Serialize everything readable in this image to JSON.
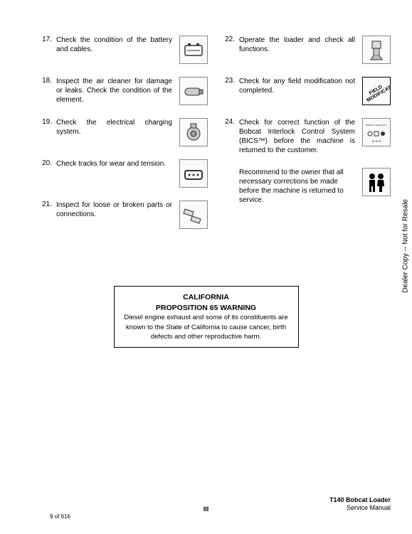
{
  "left_items": [
    {
      "num": "17.",
      "text": "Check the condition of the battery and cables.",
      "icon": "battery",
      "justify": true
    },
    {
      "num": "18.",
      "text": "Inspect the air cleaner for damage or leaks. Check the condition of the element.",
      "icon": "cylinder",
      "justify": true
    },
    {
      "num": "19.",
      "text": "Check the electrical charging system.",
      "icon": "alternator",
      "justify": true
    },
    {
      "num": "20.",
      "text": "Check tracks for wear and tension.",
      "icon": "track",
      "justify": true
    },
    {
      "num": "21.",
      "text": "Inspect for loose or broken parts or connections.",
      "icon": "broken",
      "justify": true
    }
  ],
  "right_items": [
    {
      "num": "22.",
      "text": "Operate the loader and check all functions.",
      "icon": "loader",
      "justify": true
    },
    {
      "num": "23.",
      "text": "Check for any field modification not completed.",
      "icon": "fieldmod",
      "justify": true
    },
    {
      "num": "24.",
      "text": "Check for correct function of the Bobcat Interlock Control System (BICS™) before the machine is returned to the customer.",
      "icon": "bics",
      "justify": true
    },
    {
      "num": "",
      "text": "Recommend to the owner that all necessary corrections be made before the machine is returned to service.",
      "icon": "people",
      "justify": false
    }
  ],
  "warning": {
    "title1": "CALIFORNIA",
    "title2": "PROPOSITION 65 WARNING",
    "body": "Diesel engine exhaust and some of its constituents are known to the State of California to cause cancer, birth defects and other reproductive harm."
  },
  "footer": {
    "left": "9 of 616",
    "center": "III",
    "right_line1": "T140 Bobcat Loader",
    "right_line2": "Service Manual"
  },
  "side": "Dealer Copy -- Not for Resale",
  "fieldmod_label": "FIELD MODIFICATION"
}
